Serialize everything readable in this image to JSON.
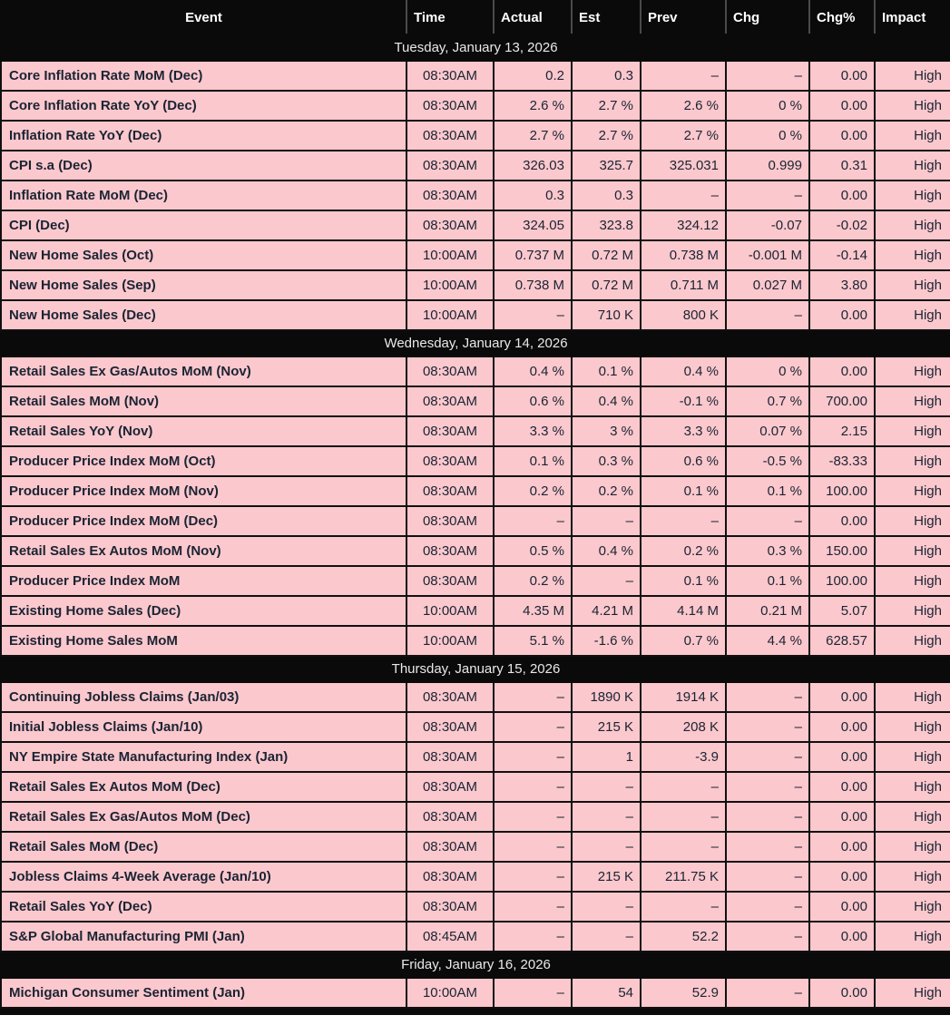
{
  "colors": {
    "header_bg": "#0a0a0a",
    "header_text": "#ffffff",
    "row_bg": "#fbc8cd",
    "row_text": "#1a2433",
    "date_row_bg": "#0a0a0a",
    "date_row_text": "#e9e9e9",
    "border": "#101010"
  },
  "table": {
    "columns": [
      "Event",
      "Time",
      "Actual",
      "Est",
      "Prev",
      "Chg",
      "Chg%",
      "Impact"
    ],
    "sections": [
      {
        "date": "Tuesday, January 13, 2026",
        "rows": [
          {
            "event": "Core Inflation Rate MoM (Dec)",
            "time": "08:30AM",
            "actual": "0.2",
            "est": "0.3",
            "prev": "–",
            "chg": "–",
            "chg_pct": "0.00",
            "impact": "High"
          },
          {
            "event": "Core Inflation Rate YoY (Dec)",
            "time": "08:30AM",
            "actual": "2.6 %",
            "est": "2.7 %",
            "prev": "2.6 %",
            "chg": "0 %",
            "chg_pct": "0.00",
            "impact": "High"
          },
          {
            "event": "Inflation Rate YoY (Dec)",
            "time": "08:30AM",
            "actual": "2.7 %",
            "est": "2.7 %",
            "prev": "2.7 %",
            "chg": "0 %",
            "chg_pct": "0.00",
            "impact": "High"
          },
          {
            "event": "CPI s.a (Dec)",
            "time": "08:30AM",
            "actual": "326.03",
            "est": "325.7",
            "prev": "325.031",
            "chg": "0.999",
            "chg_pct": "0.31",
            "impact": "High"
          },
          {
            "event": "Inflation Rate MoM (Dec)",
            "time": "08:30AM",
            "actual": "0.3",
            "est": "0.3",
            "prev": "–",
            "chg": "–",
            "chg_pct": "0.00",
            "impact": "High"
          },
          {
            "event": "CPI (Dec)",
            "time": "08:30AM",
            "actual": "324.05",
            "est": "323.8",
            "prev": "324.12",
            "chg": "-0.07",
            "chg_pct": "-0.02",
            "impact": "High"
          },
          {
            "event": "New Home Sales (Oct)",
            "time": "10:00AM",
            "actual": "0.737 M",
            "est": "0.72 M",
            "prev": "0.738 M",
            "chg": "-0.001 M",
            "chg_pct": "-0.14",
            "impact": "High"
          },
          {
            "event": "New Home Sales (Sep)",
            "time": "10:00AM",
            "actual": "0.738 M",
            "est": "0.72 M",
            "prev": "0.711 M",
            "chg": "0.027 M",
            "chg_pct": "3.80",
            "impact": "High"
          },
          {
            "event": "New Home Sales (Dec)",
            "time": "10:00AM",
            "actual": "–",
            "est": "710 K",
            "prev": "800 K",
            "chg": "–",
            "chg_pct": "0.00",
            "impact": "High"
          }
        ]
      },
      {
        "date": "Wednesday, January 14, 2026",
        "rows": [
          {
            "event": "Retail Sales Ex Gas/Autos MoM (Nov)",
            "time": "08:30AM",
            "actual": "0.4 %",
            "est": "0.1 %",
            "prev": "0.4 %",
            "chg": "0 %",
            "chg_pct": "0.00",
            "impact": "High"
          },
          {
            "event": "Retail Sales MoM (Nov)",
            "time": "08:30AM",
            "actual": "0.6 %",
            "est": "0.4 %",
            "prev": "-0.1 %",
            "chg": "0.7 %",
            "chg_pct": "700.00",
            "impact": "High"
          },
          {
            "event": "Retail Sales YoY (Nov)",
            "time": "08:30AM",
            "actual": "3.3 %",
            "est": "3 %",
            "prev": "3.3 %",
            "chg": "0.07 %",
            "chg_pct": "2.15",
            "impact": "High"
          },
          {
            "event": "Producer Price Index MoM (Oct)",
            "time": "08:30AM",
            "actual": "0.1 %",
            "est": "0.3 %",
            "prev": "0.6 %",
            "chg": "-0.5 %",
            "chg_pct": "-83.33",
            "impact": "High"
          },
          {
            "event": "Producer Price Index MoM (Nov)",
            "time": "08:30AM",
            "actual": "0.2 %",
            "est": "0.2 %",
            "prev": "0.1 %",
            "chg": "0.1 %",
            "chg_pct": "100.00",
            "impact": "High"
          },
          {
            "event": "Producer Price Index MoM (Dec)",
            "time": "08:30AM",
            "actual": "–",
            "est": "–",
            "prev": "–",
            "chg": "–",
            "chg_pct": "0.00",
            "impact": "High"
          },
          {
            "event": "Retail Sales Ex Autos MoM (Nov)",
            "time": "08:30AM",
            "actual": "0.5 %",
            "est": "0.4 %",
            "prev": "0.2 %",
            "chg": "0.3 %",
            "chg_pct": "150.00",
            "impact": "High"
          },
          {
            "event": "Producer Price Index MoM",
            "time": "08:30AM",
            "actual": "0.2 %",
            "est": "–",
            "prev": "0.1 %",
            "chg": "0.1 %",
            "chg_pct": "100.00",
            "impact": "High"
          },
          {
            "event": "Existing Home Sales (Dec)",
            "time": "10:00AM",
            "actual": "4.35 M",
            "est": "4.21 M",
            "prev": "4.14 M",
            "chg": "0.21 M",
            "chg_pct": "5.07",
            "impact": "High"
          },
          {
            "event": "Existing Home Sales MoM",
            "time": "10:00AM",
            "actual": "5.1 %",
            "est": "-1.6 %",
            "prev": "0.7 %",
            "chg": "4.4 %",
            "chg_pct": "628.57",
            "impact": "High"
          }
        ]
      },
      {
        "date": "Thursday, January 15, 2026",
        "rows": [
          {
            "event": "Continuing Jobless Claims (Jan/03)",
            "time": "08:30AM",
            "actual": "–",
            "est": "1890 K",
            "prev": "1914 K",
            "chg": "–",
            "chg_pct": "0.00",
            "impact": "High"
          },
          {
            "event": "Initial Jobless Claims (Jan/10)",
            "time": "08:30AM",
            "actual": "–",
            "est": "215 K",
            "prev": "208 K",
            "chg": "–",
            "chg_pct": "0.00",
            "impact": "High"
          },
          {
            "event": "NY Empire State Manufacturing Index (Jan)",
            "time": "08:30AM",
            "actual": "–",
            "est": "1",
            "prev": "-3.9",
            "chg": "–",
            "chg_pct": "0.00",
            "impact": "High"
          },
          {
            "event": "Retail Sales Ex Autos MoM (Dec)",
            "time": "08:30AM",
            "actual": "–",
            "est": "–",
            "prev": "–",
            "chg": "–",
            "chg_pct": "0.00",
            "impact": "High"
          },
          {
            "event": "Retail Sales Ex Gas/Autos MoM (Dec)",
            "time": "08:30AM",
            "actual": "–",
            "est": "–",
            "prev": "–",
            "chg": "–",
            "chg_pct": "0.00",
            "impact": "High"
          },
          {
            "event": "Retail Sales MoM (Dec)",
            "time": "08:30AM",
            "actual": "–",
            "est": "–",
            "prev": "–",
            "chg": "–",
            "chg_pct": "0.00",
            "impact": "High"
          },
          {
            "event": "Jobless Claims 4-Week Average (Jan/10)",
            "time": "08:30AM",
            "actual": "–",
            "est": "215 K",
            "prev": "211.75 K",
            "chg": "–",
            "chg_pct": "0.00",
            "impact": "High"
          },
          {
            "event": "Retail Sales YoY (Dec)",
            "time": "08:30AM",
            "actual": "–",
            "est": "–",
            "prev": "–",
            "chg": "–",
            "chg_pct": "0.00",
            "impact": "High"
          },
          {
            "event": "S&P Global Manufacturing PMI (Jan)",
            "time": "08:45AM",
            "actual": "–",
            "est": "–",
            "prev": "52.2",
            "chg": "–",
            "chg_pct": "0.00",
            "impact": "High"
          }
        ]
      },
      {
        "date": "Friday, January 16, 2026",
        "rows": [
          {
            "event": "Michigan Consumer Sentiment (Jan)",
            "time": "10:00AM",
            "actual": "–",
            "est": "54",
            "prev": "52.9",
            "chg": "–",
            "chg_pct": "0.00",
            "impact": "High"
          }
        ]
      }
    ]
  }
}
